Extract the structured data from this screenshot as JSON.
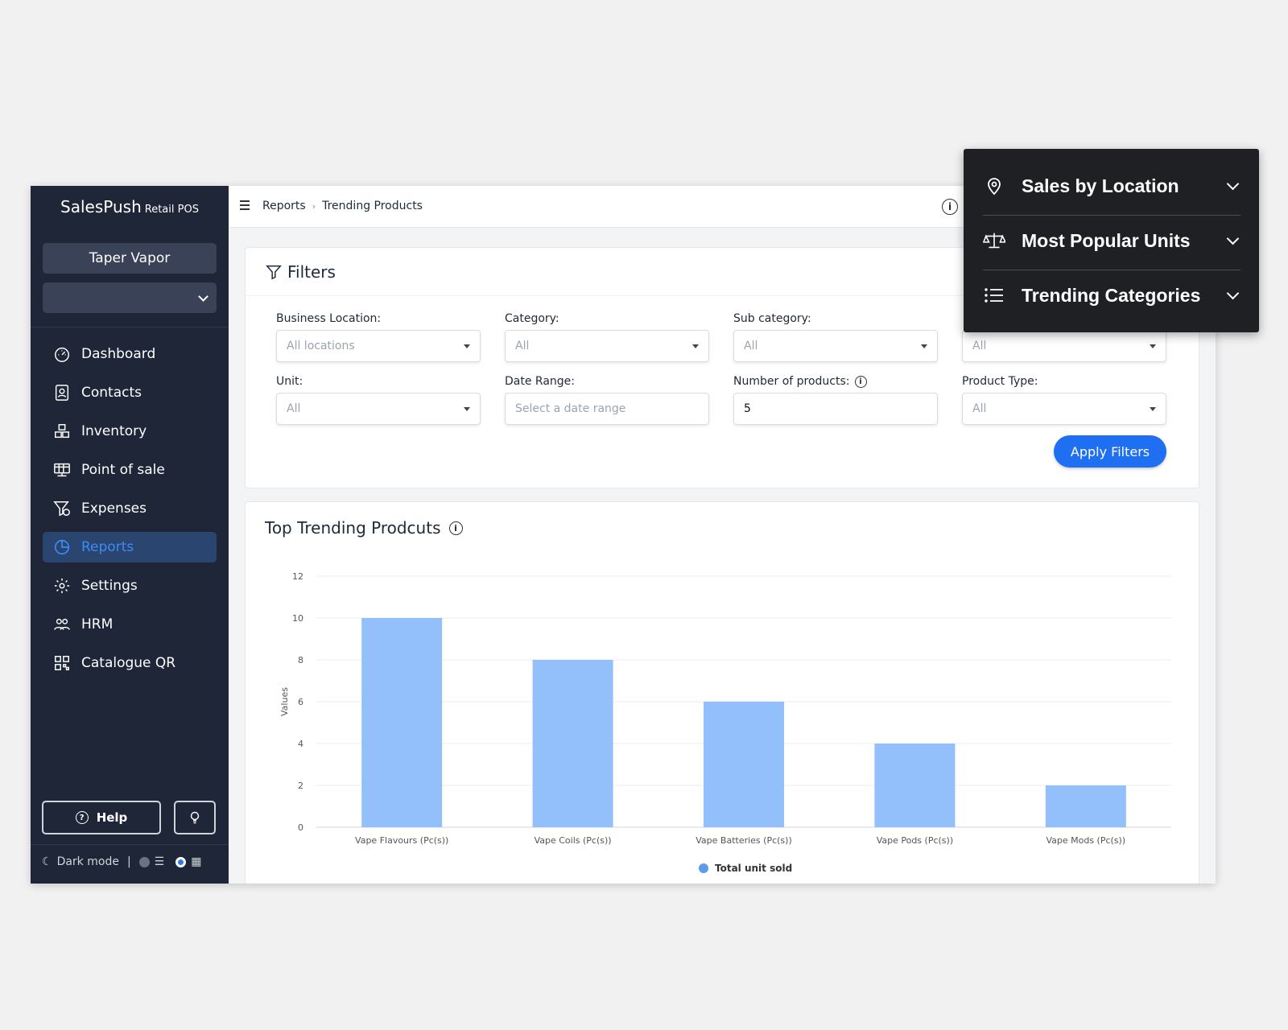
{
  "sidebar": {
    "brand": "SalesPush",
    "brand_sub": "Retail POS",
    "store": "Taper Vapor",
    "store_select_value": "",
    "items": [
      {
        "label": "Dashboard",
        "icon": "dashboard-icon",
        "active": false
      },
      {
        "label": "Contacts",
        "icon": "contacts-icon",
        "active": false
      },
      {
        "label": "Inventory",
        "icon": "inventory-icon",
        "active": false
      },
      {
        "label": "Point of sale",
        "icon": "point-of-sale-icon",
        "active": false
      },
      {
        "label": "Expenses",
        "icon": "expenses-icon",
        "active": false
      },
      {
        "label": "Reports",
        "icon": "reports-icon",
        "active": true
      },
      {
        "label": "Settings",
        "icon": "gear-icon",
        "active": false
      },
      {
        "label": "HRM",
        "icon": "people-icon",
        "active": false
      },
      {
        "label": "Catalogue QR",
        "icon": "qr-icon",
        "active": false
      }
    ],
    "help_label": "Help",
    "dark_mode_label": "Dark mode"
  },
  "breadcrumb": {
    "items": [
      "Reports",
      "Trending Products"
    ]
  },
  "filters": {
    "title": "Filters",
    "business_location": {
      "label": "Business Location:",
      "value": "All locations"
    },
    "category": {
      "label": "Category:",
      "value": "All"
    },
    "sub_category": {
      "label": "Sub category:",
      "value": "All"
    },
    "brand": {
      "label": "",
      "value": "All"
    },
    "unit": {
      "label": "Unit:",
      "value": "All"
    },
    "date_range": {
      "label": "Date Range:",
      "placeholder": "Select a date range"
    },
    "number_of_products": {
      "label": "Number of products:",
      "value": "5"
    },
    "product_type": {
      "label": "Product Type:",
      "value": "All"
    },
    "apply_label": "Apply Filters"
  },
  "chart": {
    "title": "Top Trending Prodcuts"
  },
  "chart_data": {
    "type": "bar",
    "categories": [
      "Vape Flavours (Pc(s))",
      "Vape Coils (Pc(s))",
      "Vape Batteries (Pc(s))",
      "Vape Pods (Pc(s))",
      "Vape Mods (Pc(s))"
    ],
    "series": [
      {
        "name": "Total unit sold",
        "values": [
          10,
          8,
          6,
          4,
          2
        ]
      }
    ],
    "ylabel": "Values",
    "xlabel": "",
    "ylim": [
      0,
      12
    ],
    "yticks": [
      0,
      2,
      4,
      6,
      8,
      10,
      12
    ],
    "grid": true,
    "legend": "bottom",
    "bar_color": "#93c0fb",
    "legend_dot_color": "#5b9bf0"
  },
  "popover": {
    "items": [
      {
        "label": "Sales by Location",
        "icon": "location-pin-icon"
      },
      {
        "label": "Most Popular Units",
        "icon": "scale-icon"
      },
      {
        "label": "Trending Categories",
        "icon": "list-icon"
      }
    ]
  },
  "colors": {
    "sidebar_bg": "#1e2638",
    "accent": "#1e6ff2",
    "popover_bg": "#1f2024"
  }
}
